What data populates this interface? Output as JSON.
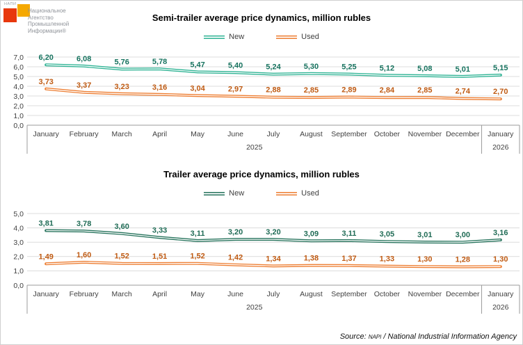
{
  "logo": {
    "acronym": "НАПИ",
    "lines": [
      "Национальное",
      "Агентство",
      "Промышленной",
      "Информации®"
    ],
    "red_color": "#e8380d",
    "orange_color": "#f5a800"
  },
  "source": {
    "prefix": "Source: ",
    "napi": "NAPI",
    "rest": " / National Industrial Information Agency"
  },
  "chart_data": [
    {
      "type": "line",
      "title": "Semi-trailer average price dynamics, million rubles",
      "categories": [
        "January",
        "February",
        "March",
        "April",
        "May",
        "June",
        "July",
        "August",
        "September",
        "October",
        "November",
        "December",
        "January"
      ],
      "year_groups": [
        {
          "label": "2025",
          "span": 12
        },
        {
          "label": "2026",
          "span": 1
        }
      ],
      "ylim": [
        0,
        7
      ],
      "ytick_step": 1,
      "yticks": [
        "7,0",
        "6,0",
        "5,0",
        "4,0",
        "3,0",
        "2,0",
        "1,0",
        "0,0"
      ],
      "grid": true,
      "legend_position": "top",
      "xlabel": "",
      "ylabel": "",
      "series": [
        {
          "name": "New",
          "color": "#2fb394",
          "label_color": "#17735f",
          "values": [
            6.2,
            6.08,
            5.76,
            5.78,
            5.47,
            5.4,
            5.24,
            5.3,
            5.25,
            5.12,
            5.08,
            5.01,
            5.15
          ],
          "labels": [
            "6,20",
            "6,08",
            "5,76",
            "5,78",
            "5,47",
            "5,40",
            "5,24",
            "5,30",
            "5,25",
            "5,12",
            "5,08",
            "5,01",
            "5,15"
          ]
        },
        {
          "name": "Used",
          "color": "#ed7d31",
          "label_color": "#bf5a12",
          "values": [
            3.73,
            3.37,
            3.23,
            3.16,
            3.04,
            2.97,
            2.88,
            2.85,
            2.89,
            2.84,
            2.85,
            2.74,
            2.7
          ],
          "labels": [
            "3,73",
            "3,37",
            "3,23",
            "3,16",
            "3,04",
            "2,97",
            "2,88",
            "2,85",
            "2,89",
            "2,84",
            "2,85",
            "2,74",
            "2,70"
          ]
        }
      ]
    },
    {
      "type": "line",
      "title": "Trailer average price dynamics, million rubles",
      "categories": [
        "January",
        "February",
        "March",
        "April",
        "May",
        "June",
        "July",
        "August",
        "September",
        "October",
        "November",
        "December",
        "January"
      ],
      "year_groups": [
        {
          "label": "2025",
          "span": 12
        },
        {
          "label": "2026",
          "span": 1
        }
      ],
      "ylim": [
        0,
        5
      ],
      "ytick_step": 1,
      "yticks": [
        "5,0",
        "4,0",
        "3,0",
        "2,0",
        "1,0",
        "0,0"
      ],
      "grid": true,
      "legend_position": "top",
      "xlabel": "",
      "ylabel": "",
      "series": [
        {
          "name": "New",
          "color": "#26735c",
          "label_color": "#1f6b55",
          "values": [
            3.81,
            3.78,
            3.6,
            3.33,
            3.11,
            3.2,
            3.2,
            3.09,
            3.11,
            3.05,
            3.01,
            3.0,
            3.16
          ],
          "labels": [
            "3,81",
            "3,78",
            "3,60",
            "3,33",
            "3,11",
            "3,20",
            "3,20",
            "3,09",
            "3,11",
            "3,05",
            "3,01",
            "3,00",
            "3,16"
          ]
        },
        {
          "name": "Used",
          "color": "#ed7d31",
          "label_color": "#bf5a12",
          "values": [
            1.49,
            1.6,
            1.52,
            1.51,
            1.52,
            1.42,
            1.34,
            1.38,
            1.37,
            1.33,
            1.3,
            1.28,
            1.3
          ],
          "labels": [
            "1,49",
            "1,60",
            "1,52",
            "1,51",
            "1,52",
            "1,42",
            "1,34",
            "1,38",
            "1,37",
            "1,33",
            "1,30",
            "1,28",
            "1,30"
          ]
        }
      ]
    }
  ]
}
